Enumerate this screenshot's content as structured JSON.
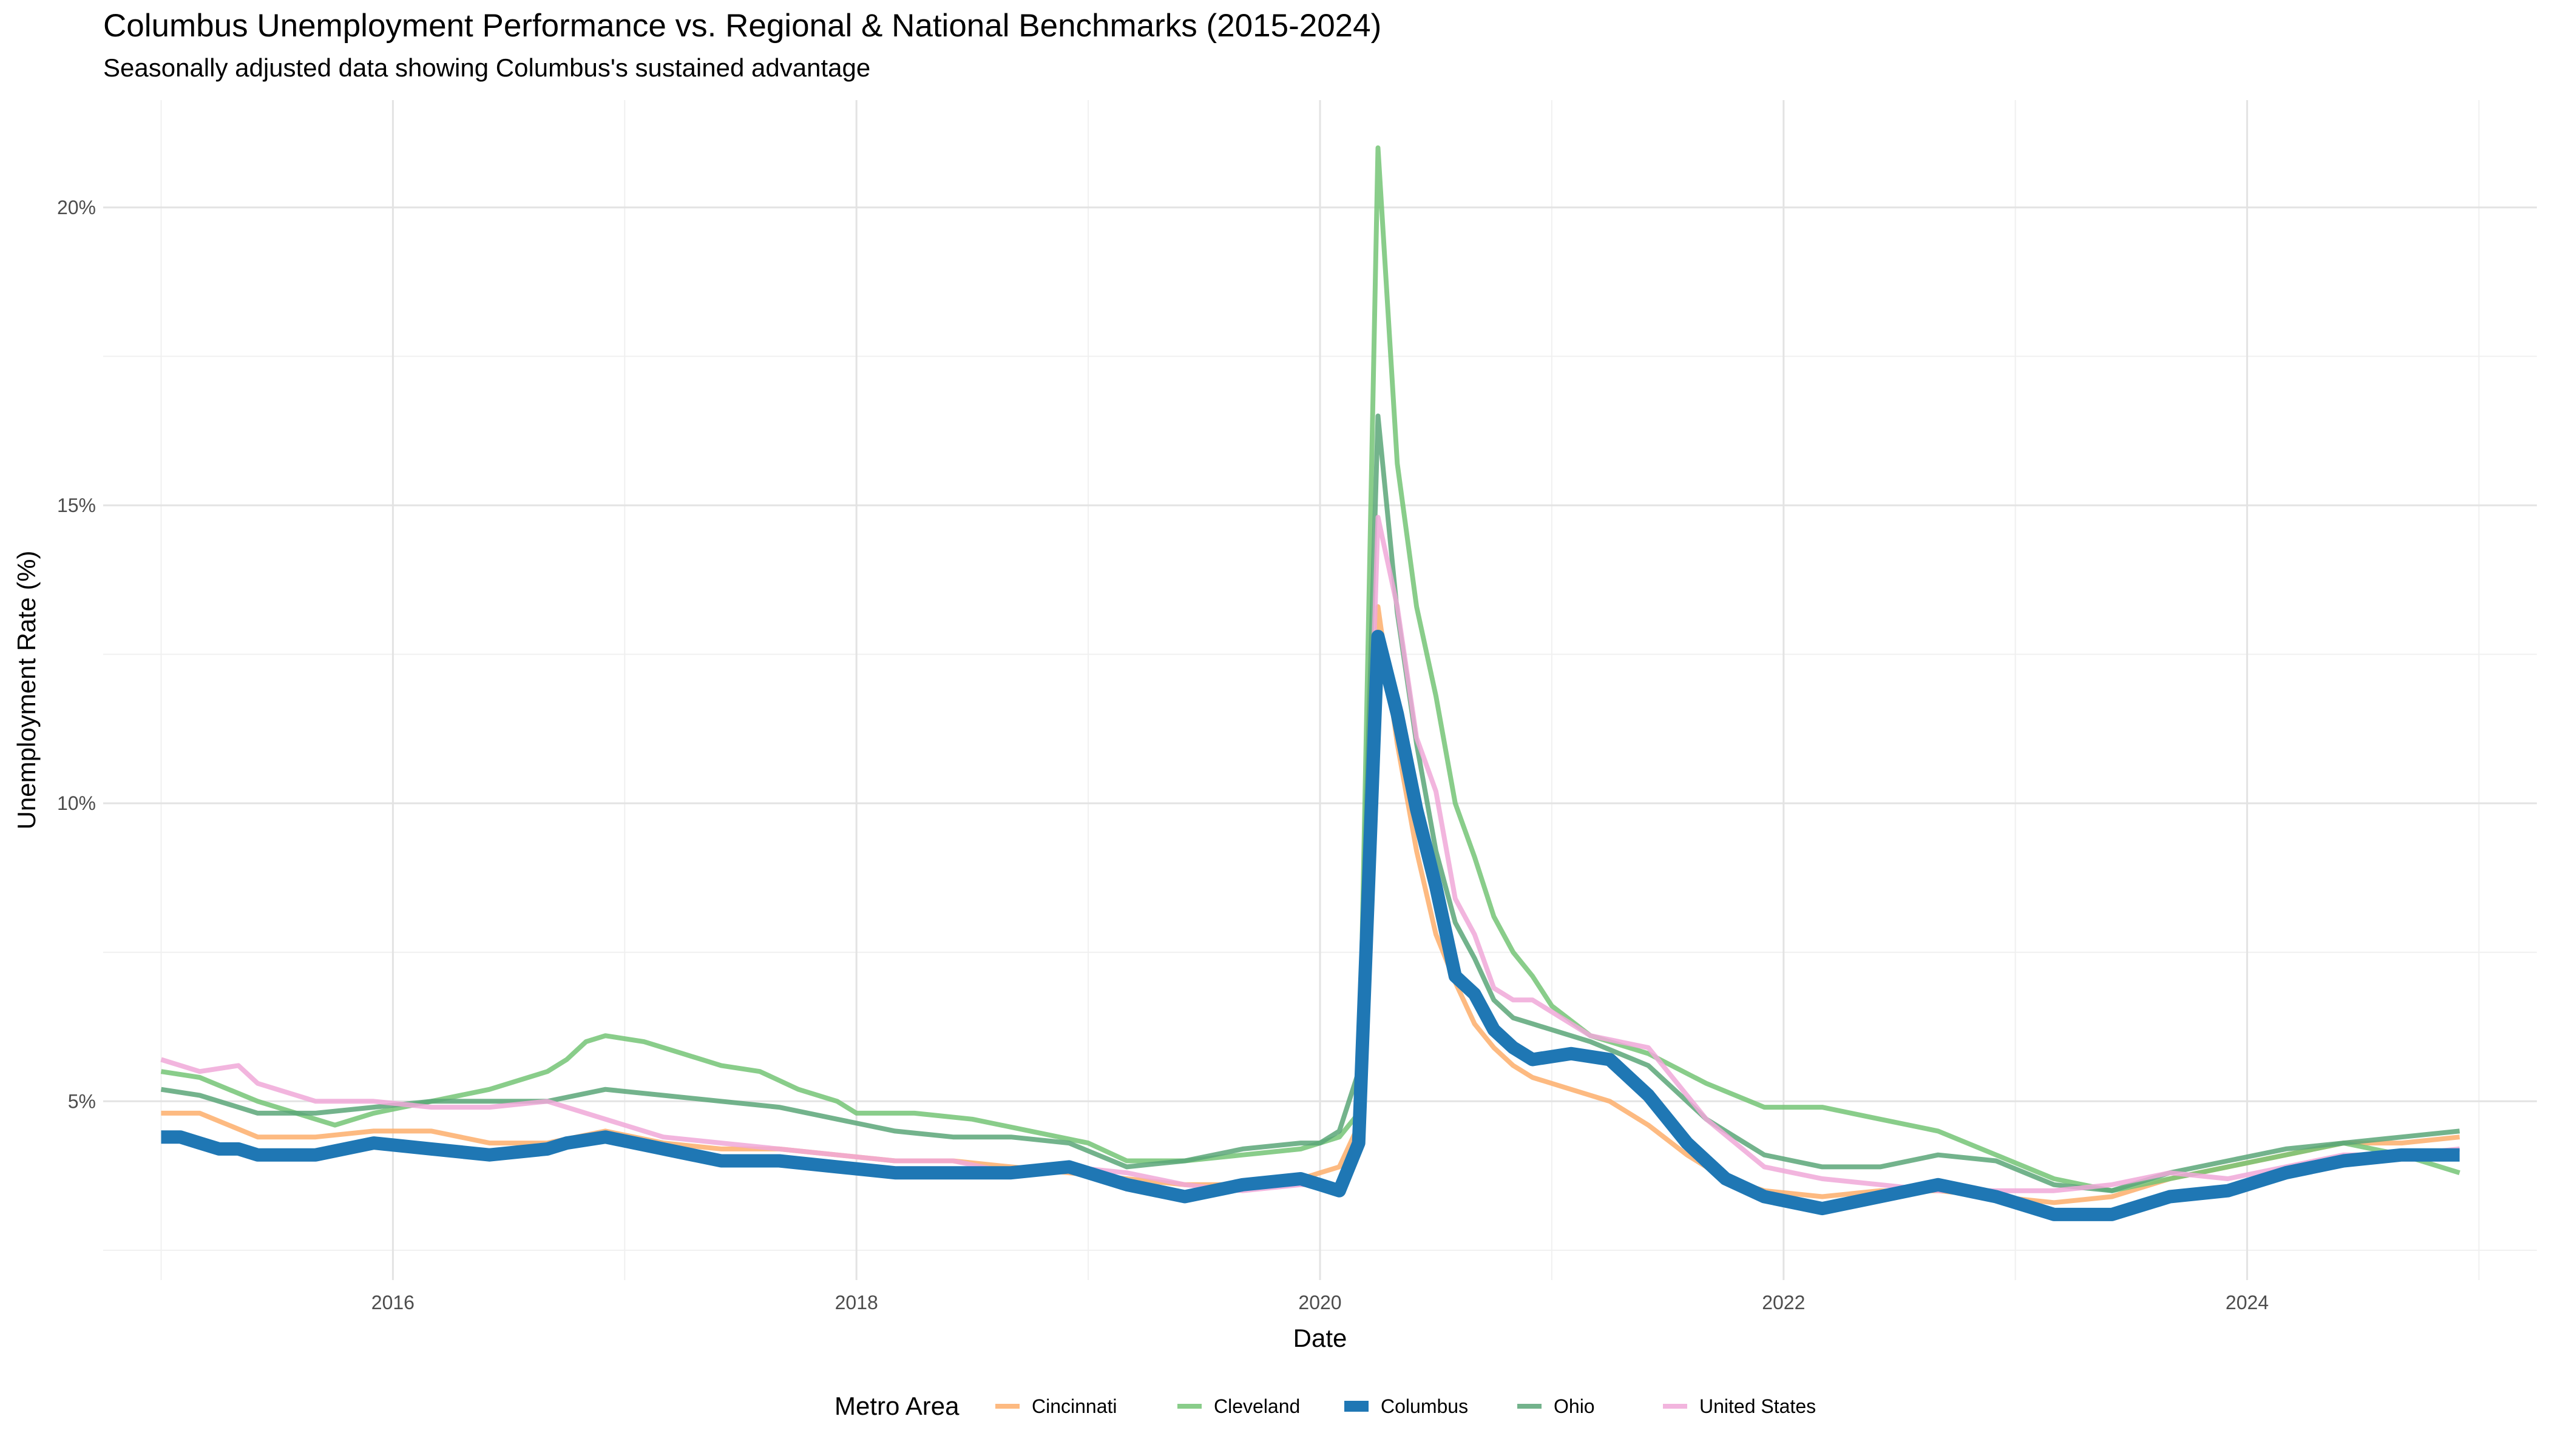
{
  "title": "Columbus Unemployment Performance vs. Regional & National Benchmarks (2015-2024)",
  "subtitle": "Seasonally adjusted data showing Columbus's sustained advantage",
  "chart_data": {
    "type": "line",
    "title": "Columbus Unemployment Performance vs. Regional & National Benchmarks (2015-2024)",
    "subtitle": "Seasonally adjusted data showing Columbus's sustained advantage",
    "xlabel": "Date",
    "ylabel": "Unemployment Rate (%)",
    "xlim": [
      "2014-10-01",
      "2025-04-01"
    ],
    "ylim": [
      2.0,
      21.8
    ],
    "x_ticks": [
      {
        "value": "2016-01-01",
        "label": "2016"
      },
      {
        "value": "2018-01-01",
        "label": "2018"
      },
      {
        "value": "2020-01-01",
        "label": "2020"
      },
      {
        "value": "2022-01-01",
        "label": "2022"
      },
      {
        "value": "2024-01-01",
        "label": "2024"
      }
    ],
    "y_ticks": [
      {
        "value": 5,
        "label": "5%"
      },
      {
        "value": 10,
        "label": "10%"
      },
      {
        "value": 15,
        "label": "15%"
      },
      {
        "value": 20,
        "label": "20%"
      }
    ],
    "grid": true,
    "legend": {
      "title": "Metro Area",
      "position": "bottom"
    },
    "series": [
      {
        "name": "Cincinnati",
        "color": "#FDAE6B",
        "emphasis": false,
        "points": [
          [
            "2015-01",
            4.8
          ],
          [
            "2015-03",
            4.8
          ],
          [
            "2015-06",
            4.4
          ],
          [
            "2015-09",
            4.4
          ],
          [
            "2015-12",
            4.5
          ],
          [
            "2016-03",
            4.5
          ],
          [
            "2016-06",
            4.3
          ],
          [
            "2016-09",
            4.3
          ],
          [
            "2016-12",
            4.5
          ],
          [
            "2017-03",
            4.3
          ],
          [
            "2017-06",
            4.2
          ],
          [
            "2017-09",
            4.2
          ],
          [
            "2017-12",
            4.1
          ],
          [
            "2018-03",
            4.0
          ],
          [
            "2018-06",
            4.0
          ],
          [
            "2018-09",
            3.9
          ],
          [
            "2018-12",
            3.8
          ],
          [
            "2019-03",
            3.7
          ],
          [
            "2019-06",
            3.6
          ],
          [
            "2019-09",
            3.6
          ],
          [
            "2019-12",
            3.7
          ],
          [
            "2020-01",
            3.8
          ],
          [
            "2020-02",
            3.9
          ],
          [
            "2020-03",
            4.6
          ],
          [
            "2020-04",
            13.3
          ],
          [
            "2020-05",
            11.0
          ],
          [
            "2020-06",
            9.2
          ],
          [
            "2020-07",
            7.8
          ],
          [
            "2020-08",
            7.0
          ],
          [
            "2020-09",
            6.3
          ],
          [
            "2020-10",
            5.9
          ],
          [
            "2020-11",
            5.6
          ],
          [
            "2020-12",
            5.4
          ],
          [
            "2021-02",
            5.2
          ],
          [
            "2021-04",
            5.0
          ],
          [
            "2021-06",
            4.6
          ],
          [
            "2021-08",
            4.1
          ],
          [
            "2021-10",
            3.7
          ],
          [
            "2021-12",
            3.5
          ],
          [
            "2022-03",
            3.4
          ],
          [
            "2022-06",
            3.5
          ],
          [
            "2022-09",
            3.5
          ],
          [
            "2022-12",
            3.4
          ],
          [
            "2023-03",
            3.3
          ],
          [
            "2023-06",
            3.4
          ],
          [
            "2023-09",
            3.7
          ],
          [
            "2023-12",
            3.9
          ],
          [
            "2024-03",
            4.1
          ],
          [
            "2024-06",
            4.3
          ],
          [
            "2024-09",
            4.3
          ],
          [
            "2024-12",
            4.4
          ]
        ]
      },
      {
        "name": "Cleveland",
        "color": "#74C476",
        "emphasis": false,
        "points": [
          [
            "2015-01",
            5.5
          ],
          [
            "2015-03",
            5.4
          ],
          [
            "2015-06",
            5.0
          ],
          [
            "2015-09",
            4.7
          ],
          [
            "2015-10",
            4.6
          ],
          [
            "2015-12",
            4.8
          ],
          [
            "2016-03",
            5.0
          ],
          [
            "2016-06",
            5.2
          ],
          [
            "2016-09",
            5.5
          ],
          [
            "2016-10",
            5.7
          ],
          [
            "2016-11",
            6.0
          ],
          [
            "2016-12",
            6.1
          ],
          [
            "2017-02",
            6.0
          ],
          [
            "2017-04",
            5.8
          ],
          [
            "2017-06",
            5.6
          ],
          [
            "2017-08",
            5.5
          ],
          [
            "2017-10",
            5.2
          ],
          [
            "2017-12",
            5.0
          ],
          [
            "2018-01",
            4.8
          ],
          [
            "2018-04",
            4.8
          ],
          [
            "2018-07",
            4.7
          ],
          [
            "2018-10",
            4.5
          ],
          [
            "2019-01",
            4.3
          ],
          [
            "2019-03",
            4.0
          ],
          [
            "2019-06",
            4.0
          ],
          [
            "2019-09",
            4.1
          ],
          [
            "2019-12",
            4.2
          ],
          [
            "2020-01",
            4.3
          ],
          [
            "2020-02",
            4.4
          ],
          [
            "2020-03",
            4.8
          ],
          [
            "2020-04",
            21.0
          ],
          [
            "2020-05",
            15.7
          ],
          [
            "2020-06",
            13.3
          ],
          [
            "2020-07",
            11.8
          ],
          [
            "2020-08",
            10.0
          ],
          [
            "2020-09",
            9.1
          ],
          [
            "2020-10",
            8.1
          ],
          [
            "2020-11",
            7.5
          ],
          [
            "2020-12",
            7.1
          ],
          [
            "2021-01",
            6.6
          ],
          [
            "2021-03",
            6.1
          ],
          [
            "2021-06",
            5.8
          ],
          [
            "2021-09",
            5.3
          ],
          [
            "2021-12",
            4.9
          ],
          [
            "2022-03",
            4.9
          ],
          [
            "2022-06",
            4.7
          ],
          [
            "2022-09",
            4.5
          ],
          [
            "2022-12",
            4.1
          ],
          [
            "2023-03",
            3.7
          ],
          [
            "2023-06",
            3.5
          ],
          [
            "2023-09",
            3.7
          ],
          [
            "2023-12",
            3.9
          ],
          [
            "2024-03",
            4.1
          ],
          [
            "2024-06",
            4.3
          ],
          [
            "2024-09",
            4.1
          ],
          [
            "2024-12",
            3.8
          ]
        ]
      },
      {
        "name": "Ohio",
        "color": "#5BA678",
        "emphasis": false,
        "points": [
          [
            "2015-01",
            5.2
          ],
          [
            "2015-03",
            5.1
          ],
          [
            "2015-06",
            4.8
          ],
          [
            "2015-09",
            4.8
          ],
          [
            "2015-12",
            4.9
          ],
          [
            "2016-03",
            5.0
          ],
          [
            "2016-06",
            5.0
          ],
          [
            "2016-09",
            5.0
          ],
          [
            "2016-12",
            5.2
          ],
          [
            "2017-03",
            5.1
          ],
          [
            "2017-06",
            5.0
          ],
          [
            "2017-09",
            4.9
          ],
          [
            "2017-12",
            4.7
          ],
          [
            "2018-03",
            4.5
          ],
          [
            "2018-06",
            4.4
          ],
          [
            "2018-09",
            4.4
          ],
          [
            "2018-12",
            4.3
          ],
          [
            "2019-03",
            3.9
          ],
          [
            "2019-06",
            4.0
          ],
          [
            "2019-09",
            4.2
          ],
          [
            "2019-12",
            4.3
          ],
          [
            "2020-01",
            4.3
          ],
          [
            "2020-02",
            4.5
          ],
          [
            "2020-03",
            5.5
          ],
          [
            "2020-04",
            16.5
          ],
          [
            "2020-05",
            13.2
          ],
          [
            "2020-06",
            11.0
          ],
          [
            "2020-07",
            9.2
          ],
          [
            "2020-08",
            8.0
          ],
          [
            "2020-09",
            7.4
          ],
          [
            "2020-10",
            6.7
          ],
          [
            "2020-11",
            6.4
          ],
          [
            "2020-12",
            6.3
          ],
          [
            "2021-03",
            6.0
          ],
          [
            "2021-06",
            5.6
          ],
          [
            "2021-09",
            4.7
          ],
          [
            "2021-12",
            4.1
          ],
          [
            "2022-03",
            3.9
          ],
          [
            "2022-06",
            3.9
          ],
          [
            "2022-09",
            4.1
          ],
          [
            "2022-12",
            4.0
          ],
          [
            "2023-03",
            3.6
          ],
          [
            "2023-06",
            3.5
          ],
          [
            "2023-09",
            3.8
          ],
          [
            "2023-12",
            4.0
          ],
          [
            "2024-03",
            4.2
          ],
          [
            "2024-06",
            4.3
          ],
          [
            "2024-09",
            4.4
          ],
          [
            "2024-12",
            4.5
          ]
        ]
      },
      {
        "name": "United States",
        "color": "#F0A8D8",
        "emphasis": false,
        "points": [
          [
            "2015-01",
            5.7
          ],
          [
            "2015-03",
            5.5
          ],
          [
            "2015-05",
            5.6
          ],
          [
            "2015-06",
            5.3
          ],
          [
            "2015-09",
            5.0
          ],
          [
            "2015-12",
            5.0
          ],
          [
            "2016-03",
            4.9
          ],
          [
            "2016-06",
            4.9
          ],
          [
            "2016-09",
            5.0
          ],
          [
            "2016-12",
            4.7
          ],
          [
            "2017-03",
            4.4
          ],
          [
            "2017-06",
            4.3
          ],
          [
            "2017-09",
            4.2
          ],
          [
            "2017-12",
            4.1
          ],
          [
            "2018-03",
            4.0
          ],
          [
            "2018-06",
            4.0
          ],
          [
            "2018-09",
            3.8
          ],
          [
            "2018-12",
            3.9
          ],
          [
            "2019-03",
            3.8
          ],
          [
            "2019-06",
            3.6
          ],
          [
            "2019-09",
            3.5
          ],
          [
            "2019-12",
            3.6
          ],
          [
            "2020-01",
            3.6
          ],
          [
            "2020-02",
            3.5
          ],
          [
            "2020-03",
            4.4
          ],
          [
            "2020-04",
            14.8
          ],
          [
            "2020-05",
            13.3
          ],
          [
            "2020-06",
            11.1
          ],
          [
            "2020-07",
            10.2
          ],
          [
            "2020-08",
            8.4
          ],
          [
            "2020-09",
            7.8
          ],
          [
            "2020-10",
            6.9
          ],
          [
            "2020-11",
            6.7
          ],
          [
            "2020-12",
            6.7
          ],
          [
            "2021-03",
            6.1
          ],
          [
            "2021-06",
            5.9
          ],
          [
            "2021-09",
            4.7
          ],
          [
            "2021-12",
            3.9
          ],
          [
            "2022-03",
            3.7
          ],
          [
            "2022-06",
            3.6
          ],
          [
            "2022-09",
            3.5
          ],
          [
            "2022-12",
            3.5
          ],
          [
            "2023-03",
            3.5
          ],
          [
            "2023-06",
            3.6
          ],
          [
            "2023-09",
            3.8
          ],
          [
            "2023-12",
            3.7
          ],
          [
            "2024-03",
            3.9
          ],
          [
            "2024-06",
            4.1
          ],
          [
            "2024-09",
            4.1
          ],
          [
            "2024-12",
            4.2
          ]
        ]
      },
      {
        "name": "Columbus",
        "color": "#1F77B4",
        "emphasis": true,
        "points": [
          [
            "2015-01",
            4.4
          ],
          [
            "2015-02",
            4.4
          ],
          [
            "2015-03",
            4.3
          ],
          [
            "2015-04",
            4.2
          ],
          [
            "2015-05",
            4.2
          ],
          [
            "2015-06",
            4.1
          ],
          [
            "2015-09",
            4.1
          ],
          [
            "2015-12",
            4.3
          ],
          [
            "2016-03",
            4.2
          ],
          [
            "2016-06",
            4.1
          ],
          [
            "2016-09",
            4.2
          ],
          [
            "2016-10",
            4.3
          ],
          [
            "2016-12",
            4.4
          ],
          [
            "2017-03",
            4.2
          ],
          [
            "2017-06",
            4.0
          ],
          [
            "2017-09",
            4.0
          ],
          [
            "2017-12",
            3.9
          ],
          [
            "2018-03",
            3.8
          ],
          [
            "2018-06",
            3.8
          ],
          [
            "2018-09",
            3.8
          ],
          [
            "2018-12",
            3.9
          ],
          [
            "2019-03",
            3.6
          ],
          [
            "2019-06",
            3.4
          ],
          [
            "2019-09",
            3.6
          ],
          [
            "2019-12",
            3.7
          ],
          [
            "2020-01",
            3.6
          ],
          [
            "2020-02",
            3.5
          ],
          [
            "2020-03",
            4.3
          ],
          [
            "2020-04",
            12.8
          ],
          [
            "2020-05",
            11.5
          ],
          [
            "2020-06",
            9.9
          ],
          [
            "2020-07",
            8.6
          ],
          [
            "2020-08",
            7.1
          ],
          [
            "2020-09",
            6.8
          ],
          [
            "2020-10",
            6.2
          ],
          [
            "2020-11",
            5.9
          ],
          [
            "2020-12",
            5.7
          ],
          [
            "2021-02",
            5.8
          ],
          [
            "2021-04",
            5.7
          ],
          [
            "2021-06",
            5.1
          ],
          [
            "2021-08",
            4.3
          ],
          [
            "2021-10",
            3.7
          ],
          [
            "2021-12",
            3.4
          ],
          [
            "2022-03",
            3.2
          ],
          [
            "2022-06",
            3.4
          ],
          [
            "2022-09",
            3.6
          ],
          [
            "2022-12",
            3.4
          ],
          [
            "2023-03",
            3.1
          ],
          [
            "2023-06",
            3.1
          ],
          [
            "2023-09",
            3.4
          ],
          [
            "2023-12",
            3.5
          ],
          [
            "2024-03",
            3.8
          ],
          [
            "2024-06",
            4.0
          ],
          [
            "2024-09",
            4.1
          ],
          [
            "2024-12",
            4.1
          ]
        ]
      }
    ]
  }
}
